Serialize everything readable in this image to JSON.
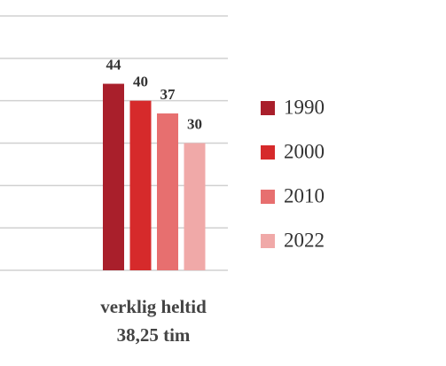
{
  "chart_data": {
    "type": "bar",
    "categories": [
      "verklig heltid\n38,25 tim"
    ],
    "series": [
      {
        "name": "1990",
        "color": "#a91f2b",
        "values": [
          44
        ]
      },
      {
        "name": "2000",
        "color": "#d62a2b",
        "values": [
          40
        ]
      },
      {
        "name": "2010",
        "color": "#e76f6f",
        "values": [
          37
        ]
      },
      {
        "name": "2022",
        "color": "#f0a9a8",
        "values": [
          30
        ]
      }
    ],
    "ylim": [
      0,
      60
    ],
    "yticks": [
      0,
      10,
      20,
      30,
      40,
      50,
      60
    ],
    "grid": true,
    "legend": "right"
  }
}
